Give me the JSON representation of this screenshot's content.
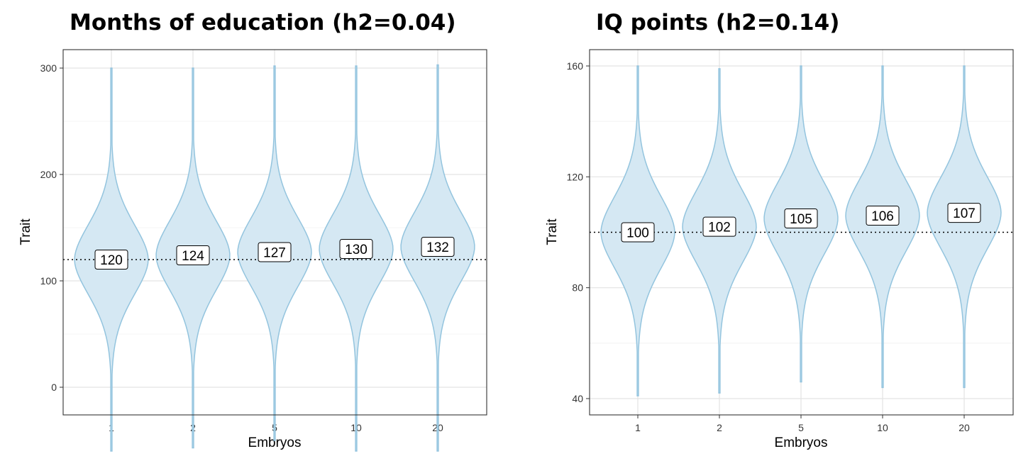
{
  "chart_data": [
    {
      "type": "violin",
      "title": "Months of education (h2=0.04)",
      "xlabel": "Embryos",
      "ylabel": "Trait",
      "categories": [
        "1",
        "2",
        "5",
        "10",
        "20"
      ],
      "y_ticks": [
        0,
        100,
        200,
        300
      ],
      "ylim": [
        -80,
        320
      ],
      "grid": true,
      "reference_line": 120,
      "values": [
        120,
        124,
        127,
        130,
        132
      ],
      "distribution_range": [
        [
          -60,
          300
        ],
        [
          -57,
          300
        ],
        [
          -50,
          302
        ],
        [
          -60,
          302
        ],
        [
          -60,
          303
        ]
      ],
      "spread": 34,
      "color": "#d5e8f3",
      "outline_color": "#93c4de"
    },
    {
      "type": "violin",
      "title": "IQ points (h2=0.14)",
      "xlabel": "Embryos",
      "ylabel": "Trait",
      "categories": [
        "1",
        "2",
        "5",
        "10",
        "20"
      ],
      "y_ticks": [
        40,
        80,
        120,
        160
      ],
      "ylim": [
        35,
        165
      ],
      "grid": true,
      "reference_line": 100,
      "values": [
        100,
        102,
        105,
        106,
        107
      ],
      "distribution_range": [
        [
          41,
          160
        ],
        [
          42,
          159
        ],
        [
          46,
          160
        ],
        [
          44,
          160
        ],
        [
          44,
          160
        ]
      ],
      "spread": 13.5,
      "color": "#d5e8f3",
      "outline_color": "#93c4de"
    }
  ]
}
